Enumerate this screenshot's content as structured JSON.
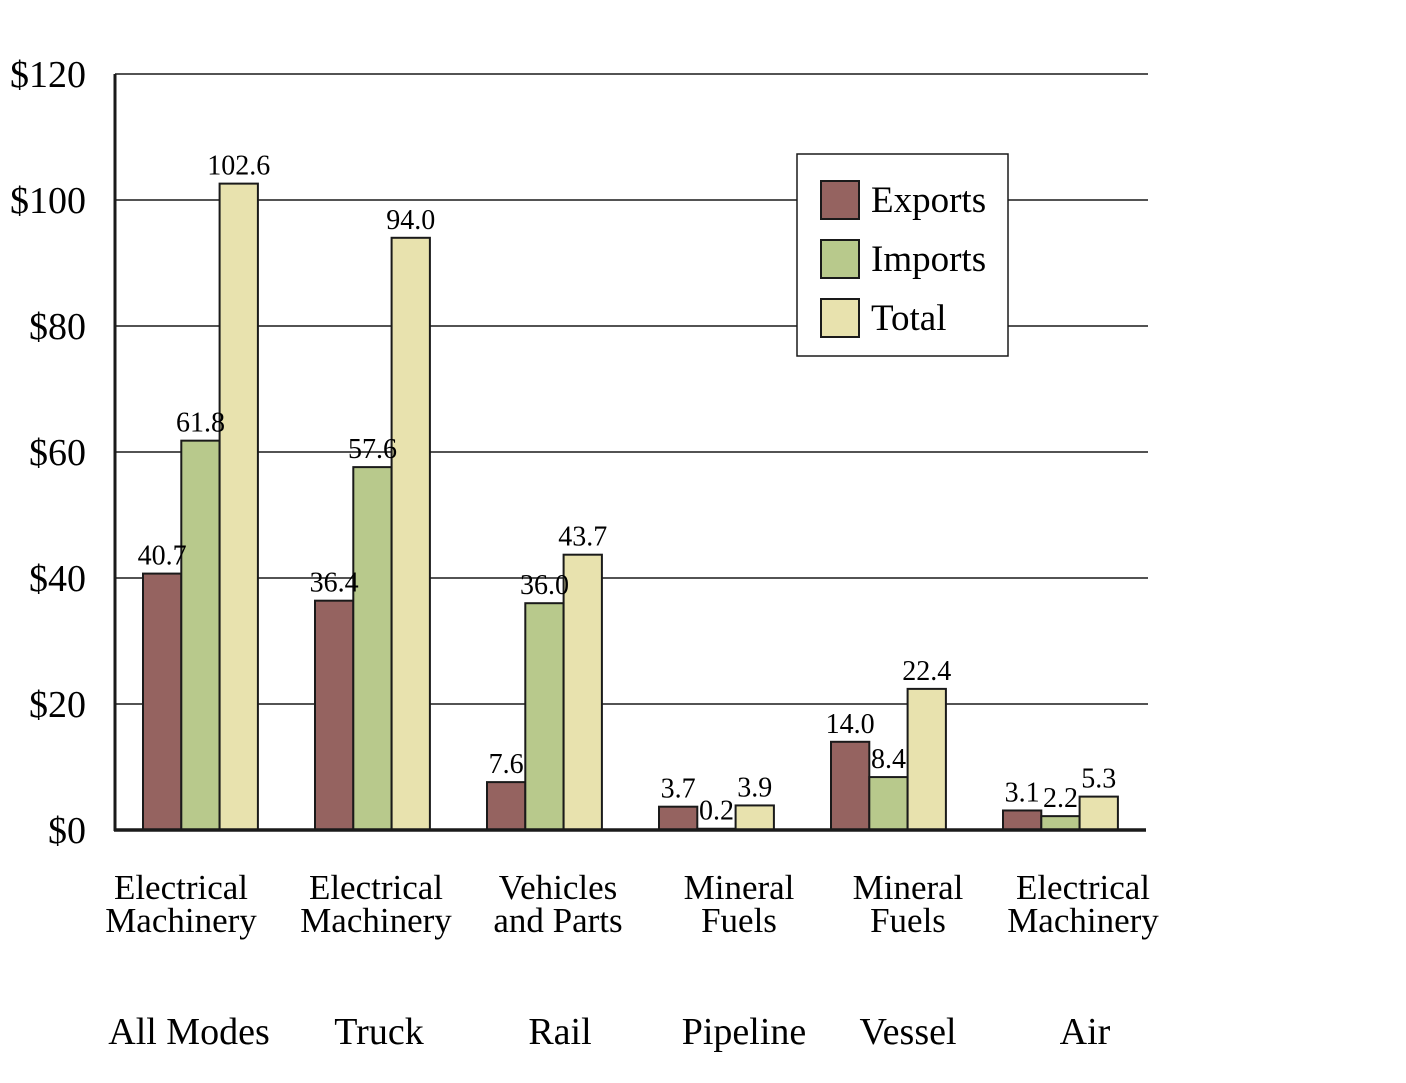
{
  "chart_data": {
    "type": "bar",
    "ylim": [
      0,
      120
    ],
    "y_ticks": [
      {
        "value": 0,
        "label": "$0"
      },
      {
        "value": 20,
        "label": "$20"
      },
      {
        "value": 40,
        "label": "$40"
      },
      {
        "value": 60,
        "label": "$60"
      },
      {
        "value": 80,
        "label": "$80"
      },
      {
        "value": 100,
        "label": "$100"
      },
      {
        "value": 120,
        "label": "$120"
      }
    ],
    "grid": true,
    "legend_position": "top-right",
    "categories": [
      {
        "commodity": [
          "Electrical",
          "Machinery"
        ],
        "mode": "All Modes"
      },
      {
        "commodity": [
          "Electrical",
          "Machinery"
        ],
        "mode": "Truck"
      },
      {
        "commodity": [
          "Vehicles",
          "and Parts"
        ],
        "mode": "Rail"
      },
      {
        "commodity": [
          "Mineral",
          "Fuels"
        ],
        "mode": "Pipeline"
      },
      {
        "commodity": [
          "Mineral",
          "Fuels"
        ],
        "mode": "Vessel"
      },
      {
        "commodity": [
          "Electrical",
          "Machinery"
        ],
        "mode": "Air"
      }
    ],
    "series": [
      {
        "name": "Exports",
        "color": "#956360",
        "values": [
          40.7,
          36.4,
          7.6,
          3.7,
          14.0,
          3.1
        ],
        "labels": [
          "40.7",
          "36.4",
          "7.6",
          "3.7",
          "14.0",
          "3.1"
        ]
      },
      {
        "name": "Imports",
        "color": "#b8c98c",
        "values": [
          61.8,
          57.6,
          36.0,
          0.2,
          8.4,
          2.2
        ],
        "labels": [
          "61.8",
          "57.6",
          "36.0",
          "0.2",
          "8.4",
          "2.2"
        ]
      },
      {
        "name": "Total",
        "color": "#e8e2ae",
        "values": [
          102.6,
          94.0,
          43.7,
          3.9,
          22.4,
          5.3
        ],
        "labels": [
          "102.6",
          "94.0",
          "43.7",
          "3.9",
          "22.4",
          "5.3"
        ]
      }
    ]
  }
}
